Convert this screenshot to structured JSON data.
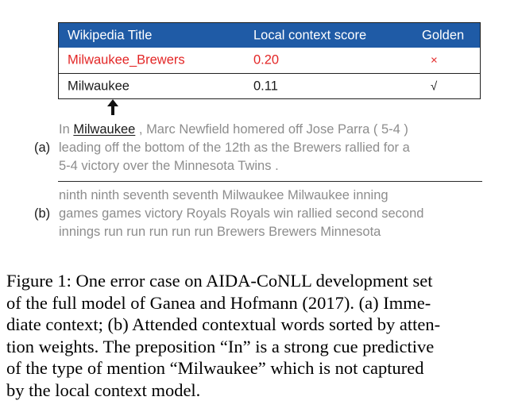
{
  "table": {
    "headers": [
      "Wikipedia Title",
      "Local context score",
      "Golden"
    ],
    "rows": [
      {
        "title": "Milwaukee_Brewers",
        "score": "0.20",
        "golden": "×"
      },
      {
        "title": "Milwaukee",
        "score": "0.11",
        "golden": "√"
      }
    ]
  },
  "arrow_icon": "up-arrow-icon",
  "panel_a": {
    "tag": "(a)",
    "lines": [
      [
        "In ",
        "Milwaukee",
        " , Marc Newfield homered off Jose Parra ( 5-4 )"
      ],
      "leading off the bottom of the 12th as the Brewers rallied for a",
      "5-4 victory over the Minnesota Twins ."
    ]
  },
  "panel_b": {
    "tag": "(b)",
    "lines": [
      "ninth ninth seventh seventh Milwaukee Milwaukee inning",
      "games games victory Royals Royals win rallied second second",
      "innings run run run run run Brewers Brewers Minnesota"
    ]
  },
  "caption": {
    "lines": [
      "Figure 1: One error case on AIDA-CoNLL development set",
      "of the full model of Ganea and Hofmann (2017). (a) Imme-",
      "diate context; (b) Attended contextual words sorted by atten-",
      "tion weights. The preposition “In” is a strong cue predictive",
      "of the type of mention “Milwaukee” which is not captured",
      "by the local context model."
    ]
  },
  "colors": {
    "header_bg": "#1f5ba6",
    "wrong": "#e32626",
    "context_text": "#8d8d8d"
  }
}
